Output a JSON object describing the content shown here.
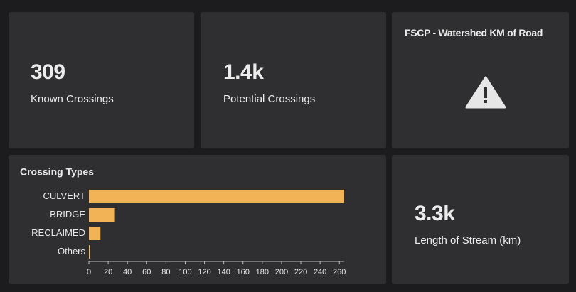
{
  "tiles": [
    {
      "value": "309",
      "label": "Known Crossings"
    },
    {
      "value": "1.4k",
      "label": "Potential Crossings"
    },
    {
      "title": "FSCP - Watershed KM of Road"
    },
    {
      "value": "3.3k",
      "label": "Length of Stream (km)"
    }
  ],
  "chart_data": {
    "type": "barh",
    "title": "Crossing Types",
    "categories": [
      "CULVERT",
      "BRIDGE",
      "RECLAIMED",
      "Others"
    ],
    "values": [
      265,
      27,
      12,
      1
    ],
    "color": "#f2b357",
    "xlim": [
      0,
      265
    ],
    "xticks": [
      0,
      20,
      40,
      60,
      80,
      100,
      120,
      140,
      160,
      180,
      200,
      220,
      240,
      260
    ]
  }
}
